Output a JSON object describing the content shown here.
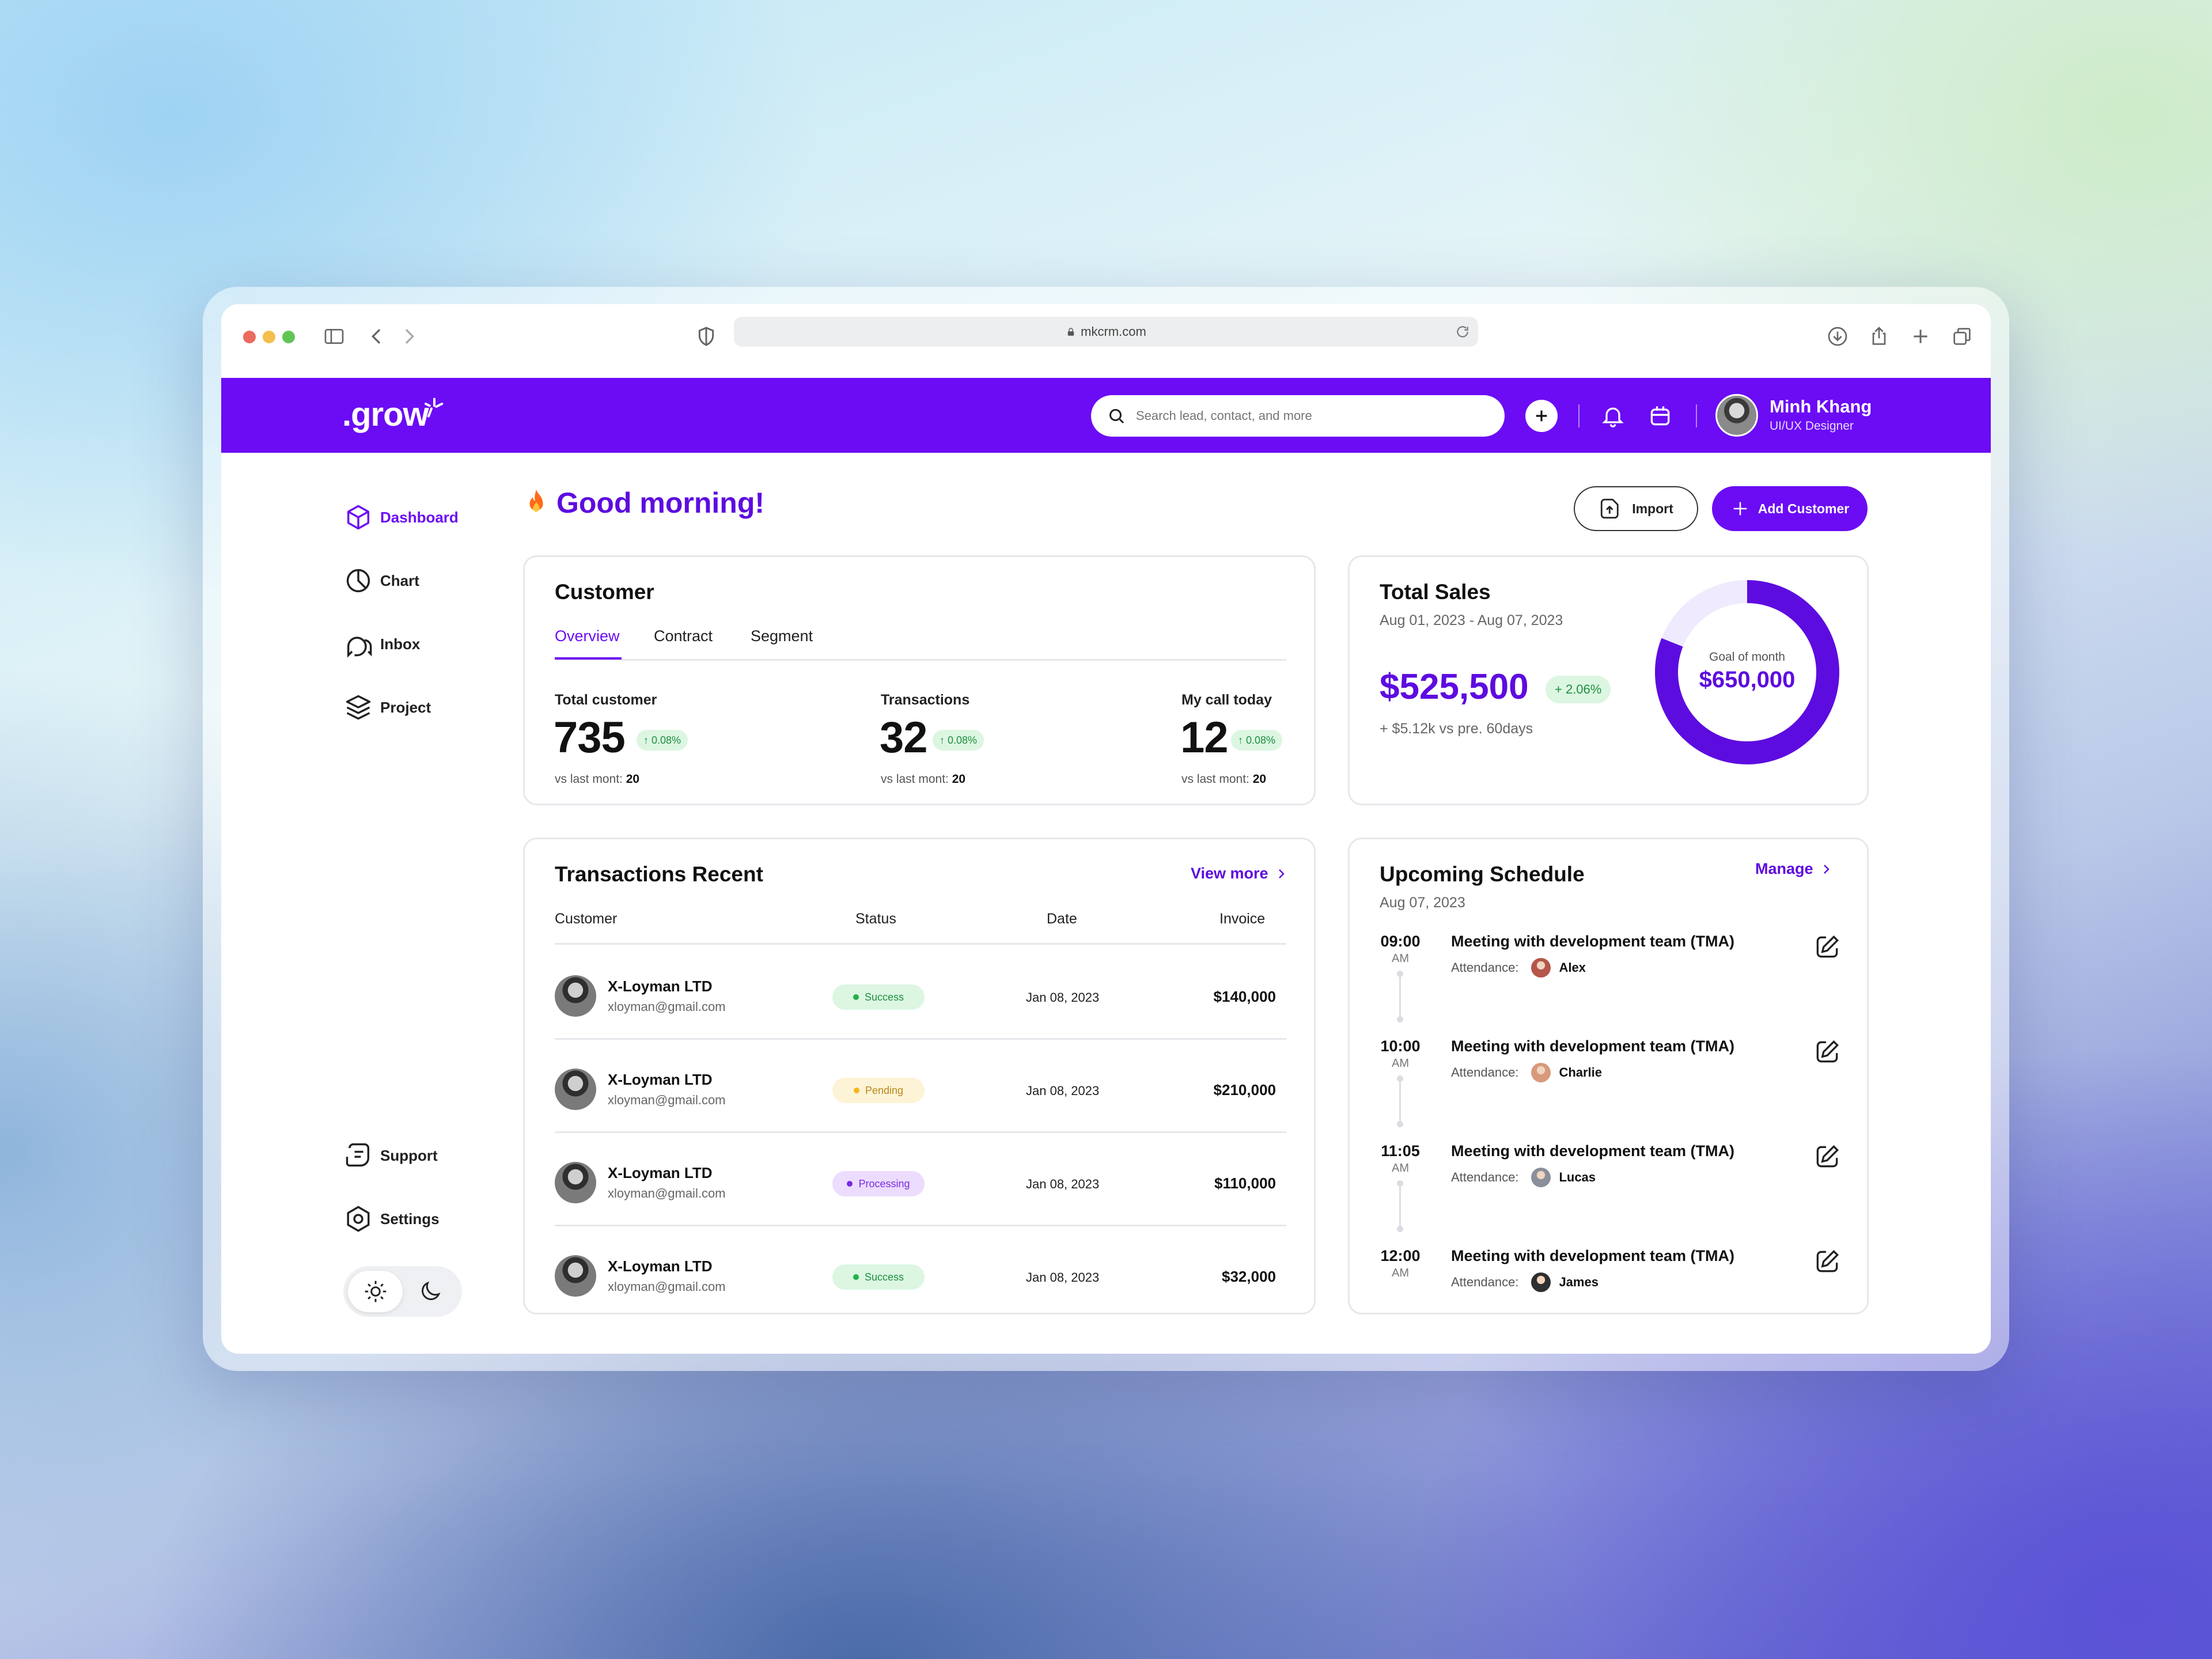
{
  "browser": {
    "url": "mkcrm.com"
  },
  "header": {
    "logo": ".grow",
    "search_placeholder": "Search lead, contact, and more",
    "user_name": "Minh Khang",
    "user_role": "UI/UX Designer"
  },
  "sidebar": {
    "items": [
      {
        "label": "Dashboard",
        "icon": "cube-icon",
        "active": true
      },
      {
        "label": "Chart",
        "icon": "pie-chart-icon"
      },
      {
        "label": "Inbox",
        "icon": "chat-bubbles-icon"
      },
      {
        "label": "Project",
        "icon": "layers-icon"
      }
    ],
    "bottom_items": [
      {
        "label": "Support",
        "icon": "support-icon"
      },
      {
        "label": "Settings",
        "icon": "settings-icon"
      }
    ]
  },
  "page": {
    "greeting": "Good morning!",
    "import_label": "Import",
    "add_customer_label": "Add Customer"
  },
  "customer_card": {
    "title": "Customer",
    "tabs": [
      "Overview",
      "Contract",
      "Segment"
    ],
    "active_tab": "Overview",
    "stats": [
      {
        "label": "Total customer",
        "value": "735",
        "change": "0.08%",
        "foot_prefix": "vs last mont: ",
        "foot_value": "20"
      },
      {
        "label": "Transactions",
        "value": "32",
        "change": "0.08%",
        "foot_prefix": "vs last mont: ",
        "foot_value": "20"
      },
      {
        "label": "My call today",
        "value": "12",
        "change": "0.08%",
        "foot_prefix": "vs last mont: ",
        "foot_value": "20"
      }
    ]
  },
  "sales_card": {
    "title": "Total Sales",
    "date_range": "Aug 01, 2023 - Aug 07, 2023",
    "amount": "$525,500",
    "change": "+ 2.06%",
    "compare": "+ $5.12k vs pre. 60days",
    "goal_label": "Goal of month",
    "goal_value": "$650,000",
    "progress": 0.81,
    "accent": "#5d0ce0",
    "track": "#efeafd"
  },
  "transactions": {
    "title": "Transactions Recent",
    "view_more": "View more",
    "columns": [
      "Customer",
      "Status",
      "Date",
      "Invoice"
    ],
    "rows": [
      {
        "name": "X-Loyman LTD",
        "email": "xloyman@gmail.com",
        "status": "Success",
        "status_kind": "success",
        "date": "Jan 08, 2023",
        "amount": "$140,000"
      },
      {
        "name": "X-Loyman LTD",
        "email": "xloyman@gmail.com",
        "status": "Pending",
        "status_kind": "pending",
        "date": "Jan 08, 2023",
        "amount": "$210,000"
      },
      {
        "name": "X-Loyman LTD",
        "email": "xloyman@gmail.com",
        "status": "Processing",
        "status_kind": "processing",
        "date": "Jan 08, 2023",
        "amount": "$110,000"
      },
      {
        "name": "X-Loyman LTD",
        "email": "xloyman@gmail.com",
        "status": "Success",
        "status_kind": "success",
        "date": "Jan 08, 2023",
        "amount": "$32,000"
      }
    ]
  },
  "schedule": {
    "title": "Upcoming Schedule",
    "date": "Aug 07, 2023",
    "manage": "Manage",
    "attendance_label": "Attendance:",
    "items": [
      {
        "time": "09:00",
        "ampm": "AM",
        "title": "Meeting with development team (TMA)",
        "attendee": "Alex",
        "avatar_color": "#b5564a"
      },
      {
        "time": "10:00",
        "ampm": "AM",
        "title": "Meeting with development team (TMA)",
        "attendee": "Charlie",
        "avatar_color": "#d89a7a"
      },
      {
        "time": "11:05",
        "ampm": "AM",
        "title": "Meeting with development team (TMA)",
        "attendee": "Lucas",
        "avatar_color": "#8a8f9a"
      },
      {
        "time": "12:00",
        "ampm": "AM",
        "title": "Meeting with development team (TMA)",
        "attendee": "James",
        "avatar_color": "#2f2f2f"
      }
    ]
  }
}
